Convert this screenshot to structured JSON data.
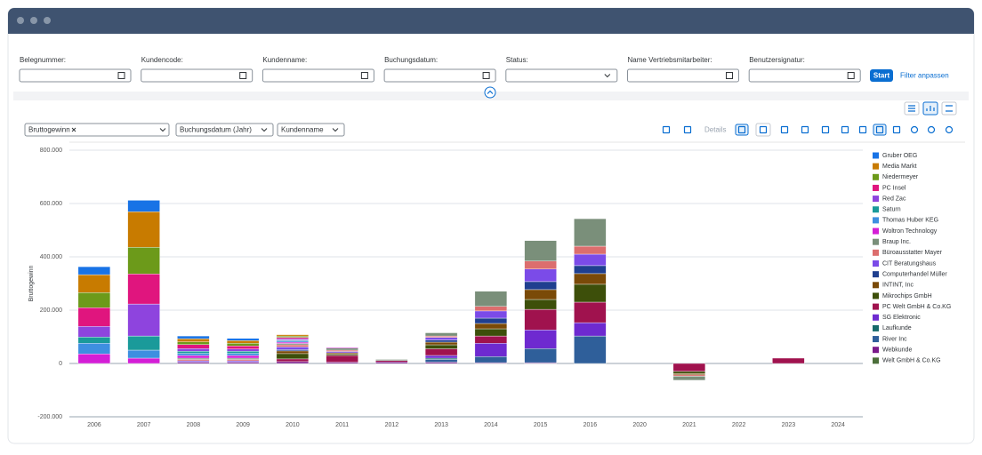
{
  "filters": [
    "Belegnummer:",
    "Kundencode:",
    "Kundenname:",
    "Buchungsdatum:",
    "Status:",
    "Name Vertriebsmitarbeiter:",
    "Benutzersignatur:"
  ],
  "buttons": {
    "start": "Start",
    "adapt": "Filter anpassen"
  },
  "toolbar": {
    "measure": "Bruttogewinn",
    "dimensions": [
      "Buchungsdatum (Jahr)",
      "Kundenname"
    ],
    "details": "Details"
  },
  "chart_data": {
    "type": "bar",
    "stacked": true,
    "y_label": "Bruttogewinn",
    "categories": [
      "2006",
      "2007",
      "2008",
      "2009",
      "2010",
      "2011",
      "2012",
      "2013",
      "2014",
      "2015",
      "2016",
      "2020",
      "2021",
      "2022",
      "2023",
      "2024"
    ],
    "ylim": [
      -200000,
      800000
    ],
    "yticks": [
      {
        "value": -200000,
        "label": "-200.000"
      },
      0,
      {
        "value": 200000,
        "label": "200.000"
      },
      {
        "value": 400000,
        "label": "400.000"
      },
      {
        "value": 600000,
        "label": "600.000"
      },
      {
        "value": 800000,
        "label": "800.000"
      }
    ],
    "grid": true,
    "legend": "right",
    "series": [
      {
        "name": "Gruber OEG",
        "color": "#1873e6",
        "values": [
          30000,
          43000,
          10000,
          8000,
          0,
          0,
          0,
          0,
          0,
          0,
          0,
          0,
          0,
          0,
          0,
          0
        ]
      },
      {
        "name": "Media Markt",
        "color": "#c87b00",
        "values": [
          67000,
          133000,
          12000,
          10000,
          5000,
          0,
          0,
          0,
          0,
          0,
          0,
          0,
          0,
          0,
          0,
          0
        ]
      },
      {
        "name": "Niedermeyer",
        "color": "#6c9a1a",
        "values": [
          57000,
          100000,
          10000,
          10000,
          5000,
          0,
          0,
          0,
          0,
          0,
          0,
          0,
          0,
          0,
          0,
          0
        ]
      },
      {
        "name": "PC Insel",
        "color": "#e0157e",
        "values": [
          70000,
          113000,
          15000,
          12000,
          5000,
          0,
          0,
          0,
          0,
          0,
          0,
          0,
          0,
          0,
          0,
          0
        ]
      },
      {
        "name": "Red Zac",
        "color": "#8e44de",
        "values": [
          40000,
          120000,
          10000,
          8000,
          5000,
          0,
          0,
          0,
          0,
          0,
          0,
          0,
          0,
          0,
          0,
          0
        ]
      },
      {
        "name": "Saturn",
        "color": "#1a9a9a",
        "values": [
          23000,
          53000,
          8000,
          8000,
          3000,
          0,
          0,
          0,
          0,
          0,
          0,
          0,
          0,
          0,
          0,
          0
        ]
      },
      {
        "name": "Thomas Huber KEG",
        "color": "#3e8fe0",
        "values": [
          40000,
          30000,
          8000,
          8000,
          5000,
          0,
          0,
          0,
          0,
          0,
          0,
          0,
          0,
          0,
          0,
          0
        ]
      },
      {
        "name": "Woltron Technology",
        "color": "#d41ed6",
        "values": [
          36000,
          20000,
          10000,
          10000,
          5000,
          3000,
          0,
          0,
          0,
          0,
          0,
          0,
          0,
          0,
          0,
          0
        ]
      },
      {
        "name": "Braup Inc.",
        "color": "#7a8f7a",
        "values": [
          0,
          0,
          5000,
          5000,
          5000,
          8000,
          4000,
          12000,
          57000,
          77000,
          103000,
          0,
          -15000,
          0,
          0,
          0
        ]
      },
      {
        "name": "Büroausstatter Mayer",
        "color": "#dc6e6e",
        "values": [
          0,
          0,
          5000,
          5000,
          8000,
          5000,
          0,
          5000,
          17000,
          30000,
          30000,
          0,
          -5000,
          0,
          0,
          0
        ]
      },
      {
        "name": "CIT Beratungshaus",
        "color": "#7b4be8",
        "values": [
          0,
          0,
          5000,
          5000,
          10000,
          5000,
          0,
          10000,
          27000,
          47000,
          43000,
          0,
          0,
          0,
          0,
          0
        ]
      },
      {
        "name": "Computerhandel Müller",
        "color": "#1f3f8f",
        "values": [
          0,
          0,
          0,
          0,
          5000,
          0,
          0,
          8000,
          20000,
          30000,
          30000,
          0,
          0,
          0,
          0,
          0
        ]
      },
      {
        "name": "INTINT, Inc",
        "color": "#7a4a08",
        "values": [
          0,
          0,
          0,
          0,
          10000,
          5000,
          0,
          10000,
          20000,
          37000,
          40000,
          0,
          -5000,
          0,
          0,
          0
        ]
      },
      {
        "name": "Mikrochips GmbH",
        "color": "#3d4f0a",
        "values": [
          0,
          0,
          0,
          0,
          20000,
          5000,
          0,
          15000,
          27000,
          37000,
          67000,
          0,
          -8000,
          0,
          0,
          0
        ]
      },
      {
        "name": "PC Welt GmbH & Co.KG",
        "color": "#a0124e",
        "values": [
          0,
          0,
          0,
          0,
          10000,
          25000,
          5000,
          25000,
          27000,
          77000,
          77000,
          0,
          -30000,
          0,
          20000,
          0
        ]
      },
      {
        "name": "SG Elektronic",
        "color": "#6e2ad0",
        "values": [
          0,
          0,
          0,
          0,
          0,
          0,
          0,
          10000,
          50000,
          70000,
          50000,
          0,
          0,
          0,
          0,
          0
        ]
      },
      {
        "name": "Laufkunde",
        "color": "#176a6a",
        "values": [
          0,
          0,
          0,
          0,
          0,
          0,
          0,
          5000,
          0,
          0,
          0,
          0,
          0,
          0,
          0,
          0
        ]
      },
      {
        "name": "River Inc",
        "color": "#2f5f9a",
        "values": [
          0,
          0,
          0,
          0,
          0,
          0,
          0,
          10000,
          23000,
          53000,
          103000,
          0,
          0,
          0,
          0,
          0
        ]
      },
      {
        "name": "Webkunde",
        "color": "#7a1a8a",
        "values": [
          0,
          0,
          5000,
          5000,
          7000,
          5000,
          6000,
          5000,
          3000,
          3000,
          0,
          0,
          0,
          0,
          0,
          0
        ]
      },
      {
        "name": "Welt GmbH & Co.KG",
        "color": "#4c6f3a",
        "values": [
          0,
          0,
          0,
          0,
          0,
          0,
          0,
          0,
          0,
          0,
          0,
          0,
          0,
          0,
          0,
          0
        ]
      }
    ]
  }
}
